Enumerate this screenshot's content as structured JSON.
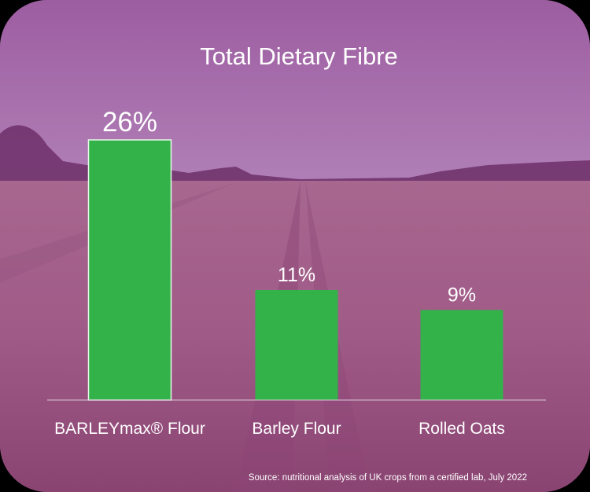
{
  "colors": {
    "bar": "#33b24a",
    "bar_edge": "#e8f6e8",
    "text": "#ffffff",
    "overlay": "#9b579a"
  },
  "chart_data": {
    "type": "bar",
    "title": "Total Dietary Fibre",
    "categories": [
      "BARLEYmax® Flour",
      "Barley Flour",
      "Rolled Oats"
    ],
    "values": [
      26,
      11,
      9
    ],
    "value_labels": [
      "26%",
      "11%",
      "9%"
    ],
    "ylim": [
      0,
      26
    ],
    "grid": false,
    "legend": "none",
    "source": "Source: nutritional analysis of UK crops from a certified lab, July 2022"
  }
}
